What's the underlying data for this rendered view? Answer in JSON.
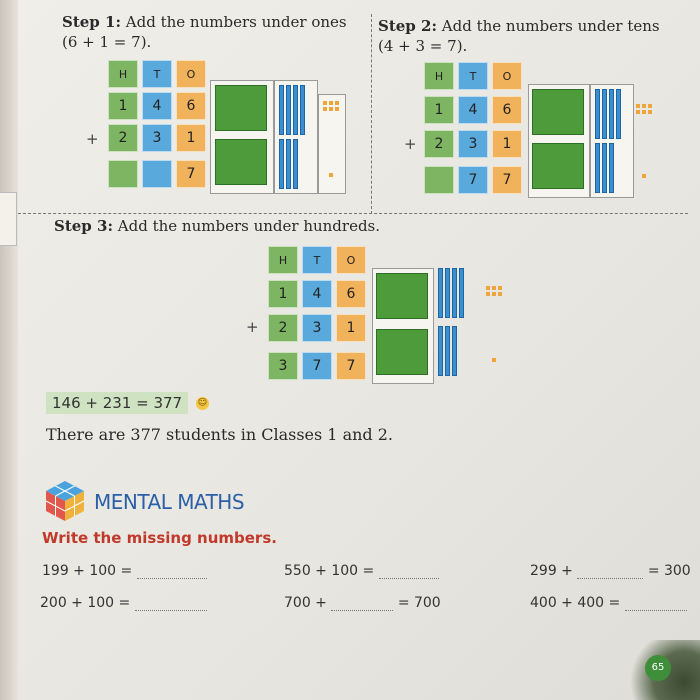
{
  "step1": {
    "label": "Step 1:",
    "text": "Add the numbers under ones",
    "equation": "(6 + 1 = 7)."
  },
  "step2": {
    "label": "Step 2:",
    "text": "Add the numbers under tens",
    "equation": "(4 + 3 = 7)."
  },
  "step3": {
    "label": "Step 3:",
    "text": "Add the numbers under hundreds."
  },
  "place_value": {
    "headers": [
      "H",
      "T",
      "O"
    ],
    "row1": [
      "1",
      "4",
      "6"
    ],
    "row2": [
      "2",
      "3",
      "1"
    ],
    "plus": "+",
    "step1_result": [
      "",
      "",
      "7"
    ],
    "step2_result": [
      "",
      "7",
      "7"
    ],
    "step3_result": [
      "3",
      "7",
      "7"
    ]
  },
  "colors": {
    "hundreds": "#7db562",
    "tens": "#5aa9dc",
    "ones": "#f1b25c"
  },
  "final_equation": "146 + 231 = 377",
  "final_sentence": "There are 377 students in Classes 1 and 2.",
  "mental_maths": {
    "title": "MENTAL MATHS",
    "icon": "cube-icon",
    "instruction": "Write the missing numbers.",
    "problems": [
      {
        "before": "199 + 100 =",
        "after": ""
      },
      {
        "before": "550 + 100 =",
        "after": ""
      },
      {
        "before": "299 +",
        "after": "= 300"
      },
      {
        "before": "200 + 100 =",
        "after": ""
      },
      {
        "before": "700 +",
        "after": "= 700"
      },
      {
        "before": "400 + 400 =",
        "after": ""
      }
    ]
  },
  "page_number": "65"
}
